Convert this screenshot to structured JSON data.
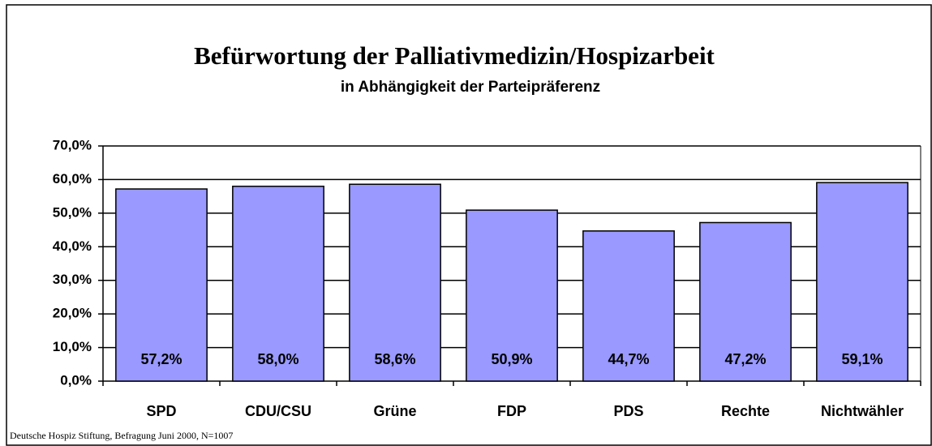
{
  "chart_data": {
    "type": "bar",
    "title": "Befürwortung der Palliativmedizin/Hospizarbeit",
    "subtitle": "in Abhängigkeit der Parteipräferenz",
    "source": "Deutsche Hospiz Stiftung, Befragung Juni 2000, N=1007",
    "categories": [
      "SPD",
      "CDU/CSU",
      "Grüne",
      "FDP",
      "PDS",
      "Rechte",
      "Nichtwähler"
    ],
    "values": [
      57.2,
      58.0,
      58.6,
      50.9,
      44.7,
      47.2,
      59.1
    ],
    "value_labels": [
      "57,2%",
      "58,0%",
      "58,6%",
      "50,9%",
      "44,7%",
      "47,2%",
      "59,1%"
    ],
    "color": "#9999ff",
    "ylim": [
      0,
      70
    ],
    "yticks": [
      {
        "value": 0,
        "label": "0,0%"
      },
      {
        "value": 10,
        "label": "10,0%"
      },
      {
        "value": 20,
        "label": "20,0%"
      },
      {
        "value": 30,
        "label": "30,0%"
      },
      {
        "value": 40,
        "label": "40,0%"
      },
      {
        "value": 50,
        "label": "50,0%"
      },
      {
        "value": 60,
        "label": "60,0%"
      },
      {
        "value": 70,
        "label": "70,0%"
      }
    ],
    "grid": true
  }
}
